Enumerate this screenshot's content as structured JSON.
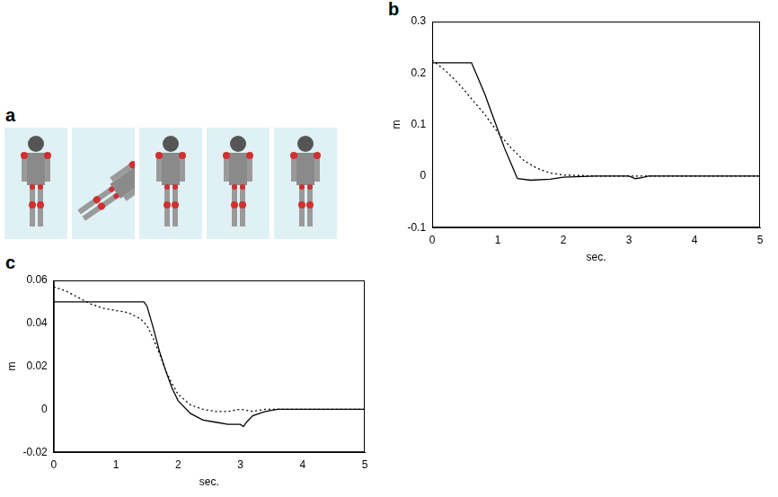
{
  "image_panel": {
    "panel": "a"
  },
  "chart_data": [
    {
      "type": "line",
      "panel": "b",
      "x_label": "sec.",
      "y_label": "m",
      "xlim": [
        0,
        5
      ],
      "xticks": [
        0,
        1,
        2,
        3,
        4,
        5
      ],
      "ylim": [
        -0.1,
        0.3
      ],
      "yticks": [
        -0.1,
        0,
        0.1,
        0.2,
        0.3
      ],
      "grid": false,
      "series": [
        {
          "color": "#000000",
          "line_style": "solid",
          "x": [
            0,
            0.6,
            0.7,
            0.8,
            0.9,
            1.0,
            1.1,
            1.2,
            1.3,
            1.5,
            1.8,
            2.0,
            2.5,
            3.0,
            3.1,
            3.2,
            3.3,
            4.0,
            5.0
          ],
          "values": [
            0.22,
            0.22,
            0.19,
            0.16,
            0.125,
            0.09,
            0.055,
            0.025,
            -0.005,
            -0.008,
            -0.006,
            -0.002,
            0,
            0,
            -0.005,
            -0.003,
            0,
            0,
            0
          ]
        },
        {
          "color": "#000000",
          "line_style": "dotted",
          "x": [
            0,
            0.2,
            0.4,
            0.6,
            0.8,
            1.0,
            1.2,
            1.4,
            1.6,
            1.8,
            2.0,
            2.5,
            3.0,
            4.0,
            5.0
          ],
          "values": [
            0.225,
            0.205,
            0.18,
            0.15,
            0.12,
            0.085,
            0.055,
            0.03,
            0.015,
            0.006,
            0.002,
            0,
            0,
            0,
            0
          ]
        }
      ]
    },
    {
      "type": "line",
      "panel": "c",
      "x_label": "sec.",
      "y_label": "m",
      "xlim": [
        0,
        5
      ],
      "xticks": [
        0,
        1,
        2,
        3,
        4,
        5
      ],
      "ylim": [
        -0.02,
        0.06
      ],
      "yticks": [
        -0.02,
        0,
        0.02,
        0.04,
        0.06
      ],
      "grid": false,
      "series": [
        {
          "color": "#000000",
          "line_style": "solid",
          "x": [
            0,
            1.45,
            1.5,
            1.6,
            1.7,
            1.8,
            1.9,
            2.0,
            2.2,
            2.4,
            2.6,
            2.8,
            3.0,
            3.05,
            3.1,
            3.2,
            3.4,
            3.6,
            4.0,
            5.0
          ],
          "values": [
            0.05,
            0.05,
            0.048,
            0.038,
            0.027,
            0.018,
            0.01,
            0.004,
            -0.002,
            -0.005,
            -0.006,
            -0.007,
            -0.007,
            -0.008,
            -0.006,
            -0.003,
            -0.001,
            0,
            0,
            0
          ]
        },
        {
          "color": "#000000",
          "line_style": "dotted",
          "x": [
            0,
            0.2,
            0.4,
            0.6,
            0.8,
            1.0,
            1.2,
            1.4,
            1.5,
            1.6,
            1.7,
            1.8,
            1.9,
            2.0,
            2.2,
            2.4,
            2.6,
            2.8,
            3.0,
            3.2,
            3.4,
            4.0,
            5.0
          ],
          "values": [
            0.057,
            0.055,
            0.052,
            0.049,
            0.047,
            0.046,
            0.045,
            0.042,
            0.039,
            0.033,
            0.026,
            0.018,
            0.012,
            0.007,
            0.002,
            0,
            -0.001,
            -0.001,
            0,
            -0.001,
            0,
            0,
            0
          ]
        }
      ]
    }
  ]
}
